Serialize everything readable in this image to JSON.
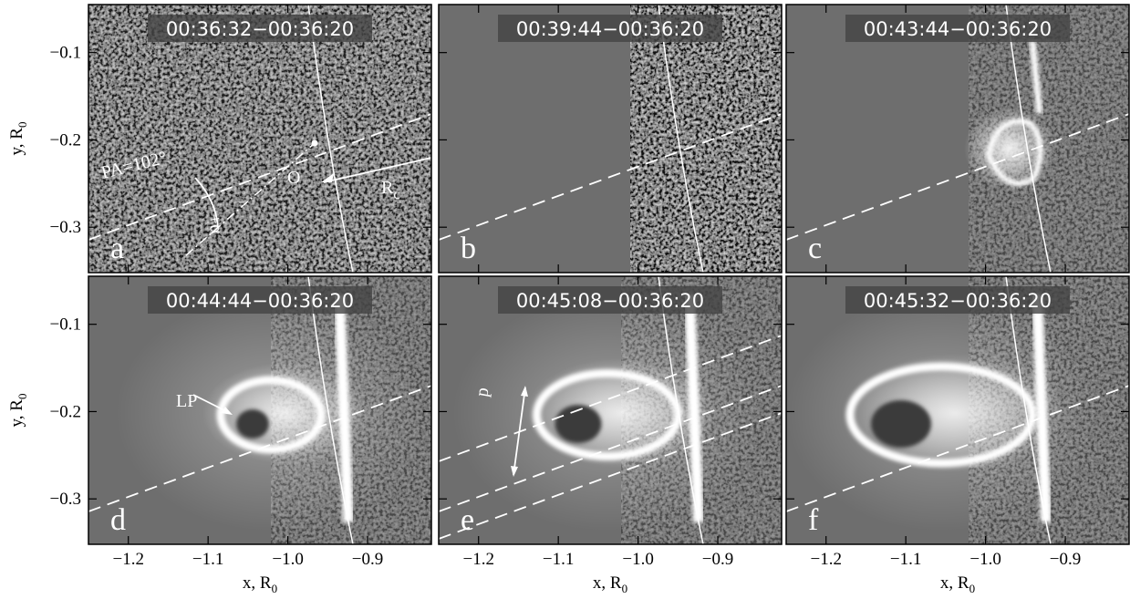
{
  "figure": {
    "x_axis": {
      "label": "x, R",
      "label_sub": "0",
      "lim": [
        -1.25,
        -0.82
      ],
      "ticks": [
        {
          "value": -1.2,
          "label": "−1.2"
        },
        {
          "value": -1.1,
          "label": "−1.1"
        },
        {
          "value": -1.0,
          "label": "−1.0"
        },
        {
          "value": -0.9,
          "label": "−0.9"
        }
      ]
    },
    "y_axis": {
      "label": "y, R",
      "label_sub": "0",
      "lim": [
        -0.045,
        -0.352
      ],
      "ticks": [
        {
          "value": -0.1,
          "label": "−0.1"
        },
        {
          "value": -0.2,
          "label": "−0.2"
        },
        {
          "value": -0.3,
          "label": "−0.3"
        }
      ]
    },
    "panels": [
      {
        "letter": "a",
        "title": "00:36:32−00:36:20"
      },
      {
        "letter": "b",
        "title": "00:39:44−00:36:20"
      },
      {
        "letter": "c",
        "title": "00:43:44−00:36:20"
      },
      {
        "letter": "d",
        "title": "00:44:44−00:36:20"
      },
      {
        "letter": "e",
        "title": "00:45:08−00:36:20"
      },
      {
        "letter": "f",
        "title": "00:45:32−00:36:20"
      }
    ],
    "annotations": {
      "pa": "PA=102°",
      "origin": "O",
      "rc": "R",
      "rc_sub": "c",
      "alpha": "+α",
      "lp": "LP",
      "p": "p"
    }
  }
}
